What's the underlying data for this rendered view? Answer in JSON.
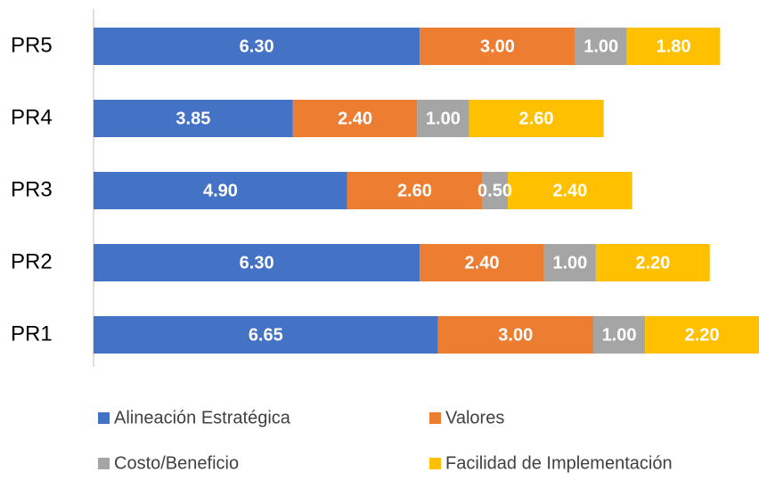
{
  "chart_data": {
    "type": "bar",
    "orientation": "horizontal",
    "stacked": true,
    "categories": [
      "PR1",
      "PR2",
      "PR3",
      "PR4",
      "PR5"
    ],
    "series": [
      {
        "name": "Alineación Estratégica",
        "color": "#4472c4",
        "values": [
          6.65,
          6.3,
          4.9,
          3.85,
          6.3
        ],
        "value_labels": [
          "6.65",
          "6.30",
          "4.90",
          "3.85",
          "6.30"
        ]
      },
      {
        "name": "Valores",
        "color": "#ed7d31",
        "values": [
          3,
          2.4,
          2.6,
          2.4,
          3
        ],
        "value_labels": [
          "3.00",
          "2.40",
          "2.60",
          "2.40",
          "3.00"
        ]
      },
      {
        "name": "Costo/Beneficio",
        "color": "#a5a5a5",
        "values": [
          1,
          1,
          0.5,
          1,
          1
        ],
        "value_labels": [
          "1.00",
          "1.00",
          "0.50",
          "1.00",
          "1.00"
        ]
      },
      {
        "name": "Facilidad de Implementación",
        "color": "#ffc000",
        "values": [
          2.2,
          2.2,
          2.4,
          2.6,
          1.8
        ],
        "value_labels": [
          "2.20",
          "2.20",
          "2.40",
          "2.60",
          "1.80"
        ]
      }
    ]
  }
}
